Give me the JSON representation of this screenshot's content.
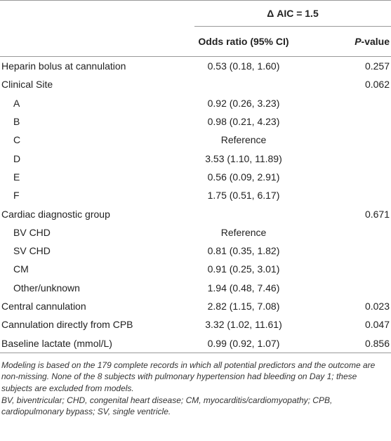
{
  "header": {
    "model": "Δ AIC = 1.5",
    "columns": [
      "Odds ratio (95% CI)",
      "P-value"
    ]
  },
  "rows": [
    {
      "label": "Heparin bolus at cannulation",
      "or": "0.53 (0.18, 1.60)",
      "p": "0.257"
    },
    {
      "label": "Clinical Site",
      "p": "0.062",
      "subrows": [
        {
          "label": "A",
          "or": "0.92 (0.26, 3.23)"
        },
        {
          "label": "B",
          "or": "0.98 (0.21, 4.23)"
        },
        {
          "label": "C",
          "or": "Reference"
        },
        {
          "label": "D",
          "or": "3.53 (1.10, 11.89)"
        },
        {
          "label": "E",
          "or": "0.56 (0.09, 2.91)"
        },
        {
          "label": "F",
          "or": "1.75 (0.51, 6.17)"
        }
      ]
    },
    {
      "label": "Cardiac diagnostic group",
      "p": "0.671",
      "subrows": [
        {
          "label": "BV CHD",
          "or": "Reference"
        },
        {
          "label": "SV CHD",
          "or": "0.81 (0.35, 1.82)"
        },
        {
          "label": "CM",
          "or": "0.91 (0.25, 3.01)"
        },
        {
          "label": "Other/unknown",
          "or": "1.94 (0.48, 7.46)"
        }
      ]
    },
    {
      "label": "Central cannulation",
      "or": "2.82 (1.15, 7.08)",
      "p": "0.023"
    },
    {
      "label": "Cannulation directly from CPB",
      "or": "3.32 (1.02, 11.61)",
      "p": "0.047"
    },
    {
      "label": "Baseline lactate (mmol/L)",
      "or": "0.99 (0.92, 1.07)",
      "p": "0.856"
    }
  ],
  "footnotes": [
    "Modeling is based on the 179 complete records in which all potential predictors and the outcome are non-missing. None of the 8 subjects with pulmonary hypertension had bleeding on Day 1; these subjects are excluded from models.",
    "BV, biventricular; CHD, congenital heart disease; CM, myocarditis/cardiomyopathy; CPB, cardiopulmonary bypass; SV, single ventricle."
  ]
}
